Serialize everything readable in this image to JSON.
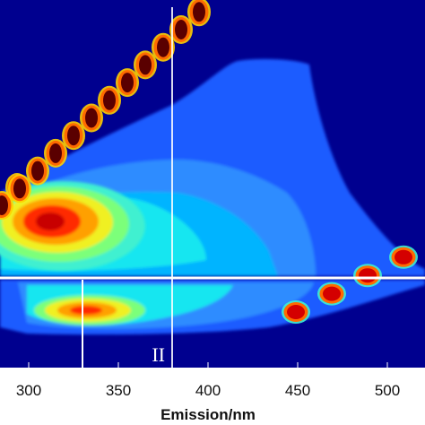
{
  "chart_data": {
    "type": "heatmap",
    "title": "",
    "xlabel": "Emission/nm",
    "ylabel": "",
    "xlim": [
      290,
      525
    ],
    "x_ticks": [
      300,
      350,
      400,
      450,
      500
    ],
    "x_tick_labels": [
      "300",
      "350",
      "400",
      "450",
      "500"
    ],
    "y_ticks": [],
    "grid": false,
    "colormap": "jet",
    "colors": {
      "background": "#00008f",
      "scatter_line": "#5a0000",
      "guide_lines": "#ffffff"
    },
    "guide_lines": {
      "vertical_x": [
        330,
        380
      ],
      "horizontal": "full width"
    },
    "annotations": [
      {
        "text": "II",
        "x": 375
      }
    ],
    "scatter_peaks": [
      {
        "x": 290,
        "kind": "upper-diagonal"
      },
      {
        "x": 295,
        "kind": "upper-diagonal"
      },
      {
        "x": 300,
        "kind": "upper-diagonal"
      },
      {
        "x": 310,
        "kind": "upper-diagonal"
      },
      {
        "x": 320,
        "kind": "upper-diagonal"
      },
      {
        "x": 330,
        "kind": "upper-diagonal"
      },
      {
        "x": 340,
        "kind": "upper-diagonal"
      },
      {
        "x": 350,
        "kind": "upper-diagonal"
      },
      {
        "x": 360,
        "kind": "upper-diagonal"
      },
      {
        "x": 370,
        "kind": "upper-diagonal"
      },
      {
        "x": 380,
        "kind": "upper-diagonal"
      },
      {
        "x": 390,
        "kind": "upper-diagonal"
      },
      {
        "x": 400,
        "kind": "upper-diagonal"
      },
      {
        "x": 460,
        "kind": "lower-diagonal"
      },
      {
        "x": 480,
        "kind": "lower-diagonal"
      },
      {
        "x": 500,
        "kind": "lower-diagonal"
      },
      {
        "x": 520,
        "kind": "lower-diagonal"
      }
    ],
    "fluorescence_peaks": [
      {
        "x": 320,
        "intensity": "max",
        "region": "upper"
      },
      {
        "x": 340,
        "intensity": "high",
        "region": "lower"
      }
    ]
  }
}
